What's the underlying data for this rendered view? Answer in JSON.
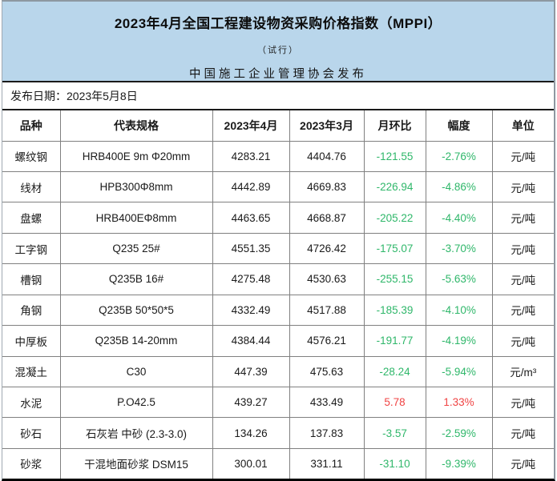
{
  "colors": {
    "banner_bg": "#b9d6eb",
    "negative_green": "#2fb76a",
    "positive_red": "#f04343"
  },
  "banner": {
    "title": "2023年4月全国工程建设物资采购价格指数（MPPI）",
    "subtitle": "（试行）",
    "publisher": "中国施工企业管理协会发布"
  },
  "release": {
    "label": "发布日期：",
    "date": "2023年5月8日"
  },
  "table": {
    "columns": [
      "品种",
      "代表规格",
      "2023年4月",
      "2023年3月",
      "月环比",
      "幅度",
      "单位"
    ],
    "rows": [
      {
        "name": "螺纹钢",
        "spec": "HRB400E 9m Φ20mm",
        "apr": "4283.21",
        "mar": "4404.76",
        "mom": "-121.55",
        "pct": "-2.76%",
        "unit": "元/吨",
        "trend": "down"
      },
      {
        "name": "线材",
        "spec": "HPB300Φ8mm",
        "apr": "4442.89",
        "mar": "4669.83",
        "mom": "-226.94",
        "pct": "-4.86%",
        "unit": "元/吨",
        "trend": "down"
      },
      {
        "name": "盘螺",
        "spec": "HRB400EΦ8mm",
        "apr": "4463.65",
        "mar": "4668.87",
        "mom": "-205.22",
        "pct": "-4.40%",
        "unit": "元/吨",
        "trend": "down"
      },
      {
        "name": "工字钢",
        "spec": "Q235 25#",
        "apr": "4551.35",
        "mar": "4726.42",
        "mom": "-175.07",
        "pct": "-3.70%",
        "unit": "元/吨",
        "trend": "down"
      },
      {
        "name": "槽钢",
        "spec": "Q235B 16#",
        "apr": "4275.48",
        "mar": "4530.63",
        "mom": "-255.15",
        "pct": "-5.63%",
        "unit": "元/吨",
        "trend": "down"
      },
      {
        "name": "角钢",
        "spec": "Q235B 50*50*5",
        "apr": "4332.49",
        "mar": "4517.88",
        "mom": "-185.39",
        "pct": "-4.10%",
        "unit": "元/吨",
        "trend": "down"
      },
      {
        "name": "中厚板",
        "spec": "Q235B 14-20mm",
        "apr": "4384.44",
        "mar": "4576.21",
        "mom": "-191.77",
        "pct": "-4.19%",
        "unit": "元/吨",
        "trend": "down"
      },
      {
        "name": "混凝土",
        "spec": "C30",
        "apr": "447.39",
        "mar": "475.63",
        "mom": "-28.24",
        "pct": "-5.94%",
        "unit": "元/m³",
        "trend": "down"
      },
      {
        "name": "水泥",
        "spec": "P.O42.5",
        "apr": "439.27",
        "mar": "433.49",
        "mom": "5.78",
        "pct": "1.33%",
        "unit": "元/吨",
        "trend": "up"
      },
      {
        "name": "砂石",
        "spec": "石灰岩 中砂 (2.3-3.0)",
        "apr": "134.26",
        "mar": "137.83",
        "mom": "-3.57",
        "pct": "-2.59%",
        "unit": "元/吨",
        "trend": "down"
      },
      {
        "name": "砂浆",
        "spec": "干混地面砂浆 DSM15",
        "apr": "300.01",
        "mar": "331.11",
        "mom": "-31.10",
        "pct": "-9.39%",
        "unit": "元/吨",
        "trend": "down"
      }
    ]
  }
}
